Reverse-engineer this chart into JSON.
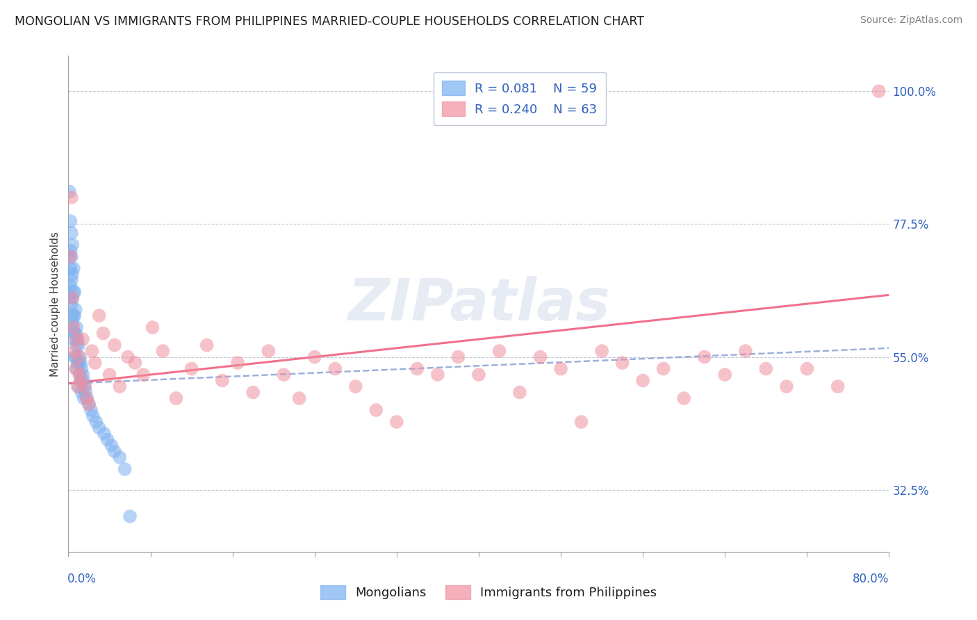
{
  "title": "MONGOLIAN VS IMMIGRANTS FROM PHILIPPINES MARRIED-COUPLE HOUSEHOLDS CORRELATION CHART",
  "source_text": "Source: ZipAtlas.com",
  "ylabel": "Married-couple Households",
  "watermark": "ZIPatlas",
  "xmin": 0.0,
  "xmax": 0.8,
  "ymin": 0.22,
  "ymax": 1.06,
  "yticks": [
    0.325,
    0.55,
    0.775,
    1.0
  ],
  "ytick_labels": [
    "32.5%",
    "55.0%",
    "77.5%",
    "100.0%"
  ],
  "series1_color": "#7ab0f0",
  "series2_color": "#f090a0",
  "trendline1_color": "#90a8d8",
  "trendline2_color": "#f06080",
  "legend_color": "#3060c0",
  "title_color": "#202020",
  "source_color": "#808080",
  "watermark_color": "#c8d4e8",
  "mongo_R": "0.081",
  "mongo_N": "59",
  "phil_R": "0.240",
  "phil_N": "63",
  "mongo_scatter_x": [
    0.001,
    0.001,
    0.001,
    0.002,
    0.002,
    0.002,
    0.002,
    0.003,
    0.003,
    0.003,
    0.003,
    0.003,
    0.004,
    0.004,
    0.004,
    0.004,
    0.005,
    0.005,
    0.005,
    0.005,
    0.006,
    0.006,
    0.006,
    0.006,
    0.007,
    0.007,
    0.007,
    0.008,
    0.008,
    0.008,
    0.009,
    0.009,
    0.01,
    0.01,
    0.01,
    0.011,
    0.011,
    0.012,
    0.012,
    0.013,
    0.013,
    0.014,
    0.015,
    0.015,
    0.016,
    0.017,
    0.018,
    0.02,
    0.022,
    0.024,
    0.027,
    0.03,
    0.035,
    0.038,
    0.042,
    0.045,
    0.05,
    0.055,
    0.06
  ],
  "mongo_scatter_y": [
    0.83,
    0.72,
    0.65,
    0.78,
    0.73,
    0.7,
    0.67,
    0.76,
    0.72,
    0.68,
    0.64,
    0.6,
    0.74,
    0.69,
    0.65,
    0.61,
    0.7,
    0.66,
    0.62,
    0.58,
    0.66,
    0.62,
    0.59,
    0.55,
    0.63,
    0.59,
    0.55,
    0.6,
    0.57,
    0.53,
    0.58,
    0.54,
    0.57,
    0.54,
    0.5,
    0.55,
    0.52,
    0.54,
    0.51,
    0.53,
    0.49,
    0.52,
    0.51,
    0.48,
    0.5,
    0.49,
    0.48,
    0.47,
    0.46,
    0.45,
    0.44,
    0.43,
    0.42,
    0.41,
    0.4,
    0.39,
    0.38,
    0.36,
    0.28
  ],
  "phil_scatter_x": [
    0.002,
    0.003,
    0.004,
    0.005,
    0.006,
    0.007,
    0.008,
    0.009,
    0.01,
    0.011,
    0.012,
    0.014,
    0.016,
    0.018,
    0.02,
    0.023,
    0.026,
    0.03,
    0.034,
    0.04,
    0.045,
    0.05,
    0.058,
    0.065,
    0.073,
    0.082,
    0.092,
    0.105,
    0.12,
    0.135,
    0.15,
    0.165,
    0.18,
    0.195,
    0.21,
    0.225,
    0.24,
    0.26,
    0.28,
    0.3,
    0.32,
    0.34,
    0.36,
    0.38,
    0.4,
    0.42,
    0.44,
    0.46,
    0.48,
    0.5,
    0.52,
    0.54,
    0.56,
    0.58,
    0.6,
    0.62,
    0.64,
    0.66,
    0.68,
    0.7,
    0.72,
    0.75,
    0.79
  ],
  "phil_scatter_y": [
    0.72,
    0.82,
    0.65,
    0.6,
    0.56,
    0.53,
    0.58,
    0.5,
    0.55,
    0.52,
    0.51,
    0.58,
    0.5,
    0.48,
    0.47,
    0.56,
    0.54,
    0.62,
    0.59,
    0.52,
    0.57,
    0.5,
    0.55,
    0.54,
    0.52,
    0.6,
    0.56,
    0.48,
    0.53,
    0.57,
    0.51,
    0.54,
    0.49,
    0.56,
    0.52,
    0.48,
    0.55,
    0.53,
    0.5,
    0.46,
    0.44,
    0.53,
    0.52,
    0.55,
    0.52,
    0.56,
    0.49,
    0.55,
    0.53,
    0.44,
    0.56,
    0.54,
    0.51,
    0.53,
    0.48,
    0.55,
    0.52,
    0.56,
    0.53,
    0.5,
    0.53,
    0.5,
    1.0
  ],
  "trendline1_x": [
    0.0,
    0.8
  ],
  "trendline1_y": [
    0.505,
    0.565
  ],
  "trendline2_x": [
    0.0,
    0.8
  ],
  "trendline2_y": [
    0.505,
    0.655
  ]
}
